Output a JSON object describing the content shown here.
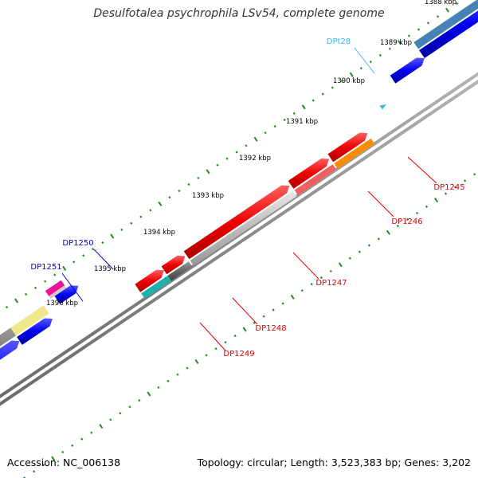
{
  "title": "Desulfotalea psychrophila LSv54, complete genome",
  "footer": {
    "accession": "Accession: NC_006138",
    "summary": "Topology: circular; Length: 3,523,383 bp; Genes: 3,202"
  },
  "ticks": [
    {
      "label": "1388 kbp"
    },
    {
      "label": "1389 kbp"
    },
    {
      "label": "1390 kbp"
    },
    {
      "label": "1391 kbp"
    },
    {
      "label": "1392 kbp"
    },
    {
      "label": "1393 kbp"
    },
    {
      "label": "1394 kbp"
    },
    {
      "label": "1395 kbp"
    },
    {
      "label": "1396 kbp"
    }
  ],
  "gene_labels": [
    {
      "name": "DPt28",
      "color": "#33bbee"
    },
    {
      "name": "DP1245",
      "color": "#dd0000"
    },
    {
      "name": "DP1246",
      "color": "#dd0000"
    },
    {
      "name": "DP1247",
      "color": "#dd0000"
    },
    {
      "name": "DP1248",
      "color": "#dd0000"
    },
    {
      "name": "DP1249",
      "color": "#dd0000"
    },
    {
      "name": "DP1250",
      "color": "#0000cc"
    },
    {
      "name": "DP1251",
      "color": "#0000cc"
    }
  ],
  "colors": {
    "backbone": "#888888",
    "tick": "#228b22",
    "forward_gene": "#ee0000",
    "reverse_gene": "#0000ee",
    "trna": "#33bbee",
    "cog_grey": "#bbbbbb",
    "cog_darkgrey": "#666666",
    "cog_orange": "#ff8c00",
    "cog_salmon": "#f06060",
    "cog_yellow": "#f0e68c",
    "cog_pink": "#ee1199",
    "cog_teal": "#20b2aa",
    "cog_steelblue": "#4682b4",
    "cog_navy": "#3a3a8a"
  }
}
